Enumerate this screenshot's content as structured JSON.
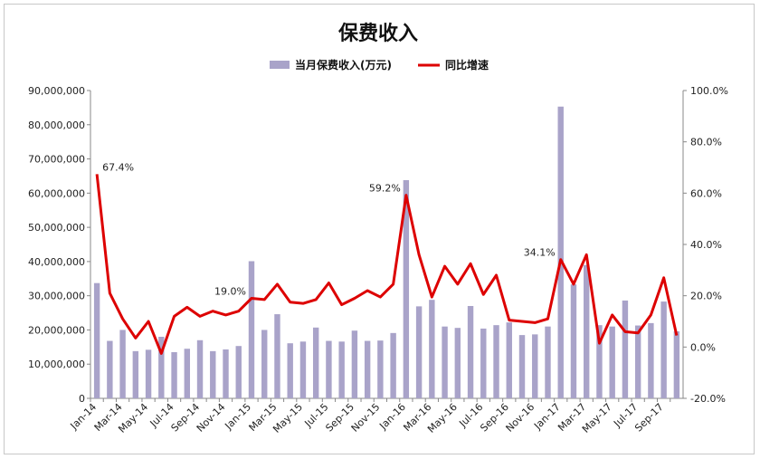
{
  "chart_data": {
    "type": "bar",
    "title": "保费收入",
    "categories": [
      "Jan-14",
      "Feb-14",
      "Mar-14",
      "Apr-14",
      "May-14",
      "Jun-14",
      "Jul-14",
      "Aug-14",
      "Sep-14",
      "Oct-14",
      "Nov-14",
      "Dec-14",
      "Jan-15",
      "Feb-15",
      "Mar-15",
      "Apr-15",
      "May-15",
      "Jun-15",
      "Jul-15",
      "Aug-15",
      "Sep-15",
      "Oct-15",
      "Nov-15",
      "Dec-15",
      "Jan-16",
      "Feb-16",
      "Mar-16",
      "Apr-16",
      "May-16",
      "Jun-16",
      "Jul-16",
      "Aug-16",
      "Sep-16",
      "Oct-16",
      "Nov-16",
      "Dec-16",
      "Jan-17",
      "Feb-17",
      "Mar-17",
      "Apr-17",
      "May-17",
      "Jun-17",
      "Jul-17",
      "Aug-17",
      "Sep-17",
      "Oct-17"
    ],
    "x_tick_labels": [
      "Jan-14",
      "Mar-14",
      "May-14",
      "Jul-14",
      "Sep-14",
      "Nov-14",
      "Jan-15",
      "Mar-15",
      "May-15",
      "Jul-15",
      "Sep-15",
      "Nov-15",
      "Jan-16",
      "Mar-16",
      "May-16",
      "Jul-16",
      "Sep-16",
      "Nov-16",
      "Jan-17",
      "Mar-17",
      "May-17",
      "Jul-17",
      "Sep-17"
    ],
    "series": [
      {
        "name": "当月保费收入(万元)",
        "type": "bar",
        "axis": "left",
        "color": "#a9a3c9",
        "values": [
          33700000,
          16800000,
          20000000,
          13800000,
          14200000,
          18000000,
          13500000,
          14500000,
          17000000,
          13800000,
          14300000,
          15300000,
          40100000,
          20000000,
          24600000,
          16100000,
          16600000,
          20700000,
          16800000,
          16600000,
          19800000,
          16800000,
          16900000,
          19100000,
          63800000,
          26900000,
          28800000,
          21000000,
          20600000,
          27000000,
          20400000,
          21400000,
          22200000,
          18500000,
          18700000,
          21000000,
          85300000,
          33300000,
          39000000,
          21400000,
          21000000,
          28600000,
          21300000,
          22000000,
          28300000,
          19600000
        ]
      },
      {
        "name": "同比增速",
        "type": "line",
        "axis": "right",
        "color": "#dd0000",
        "values": [
          67.4,
          21.0,
          11.0,
          3.5,
          10.0,
          -2.5,
          12.0,
          15.5,
          12.0,
          14.0,
          12.5,
          14.0,
          19.0,
          18.5,
          24.5,
          17.5,
          17.0,
          18.5,
          25.0,
          16.5,
          19.0,
          22.0,
          19.5,
          24.5,
          59.2,
          36.0,
          19.5,
          31.5,
          24.5,
          32.5,
          20.5,
          28.0,
          10.5,
          10.0,
          9.5,
          11.0,
          34.1,
          24.5,
          36.0,
          1.5,
          12.5,
          6.0,
          5.5,
          12.5,
          27.0,
          4.5
        ]
      }
    ],
    "y_left": {
      "min": 0,
      "max": 90000000,
      "step": 10000000,
      "tick_labels": [
        "0",
        "10,000,000",
        "20,000,000",
        "30,000,000",
        "40,000,000",
        "50,000,000",
        "60,000,000",
        "70,000,000",
        "80,000,000",
        "90,000,000"
      ]
    },
    "y_right": {
      "min": -20,
      "max": 100,
      "step": 20,
      "tick_labels": [
        "-20.0%",
        "0.0%",
        "20.0%",
        "40.0%",
        "60.0%",
        "80.0%",
        "100.0%"
      ]
    },
    "annotations": [
      {
        "index": 0,
        "text": "67.4%"
      },
      {
        "index": 12,
        "text": "19.0%"
      },
      {
        "index": 24,
        "text": "59.2%"
      },
      {
        "index": 36,
        "text": "34.1%"
      }
    ],
    "legend_position": "top",
    "grid": false
  }
}
